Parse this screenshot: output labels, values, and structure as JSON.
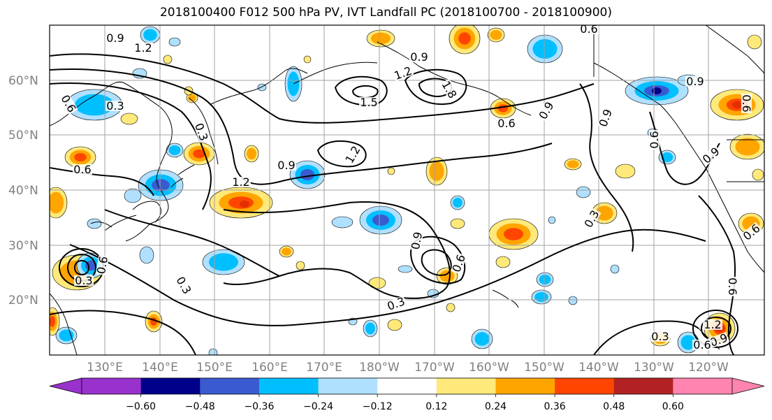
{
  "title": "2018100400 F012 500 hPa PV, IVT Landfall PC (2018100700 - 2018100900)",
  "colors": {
    "neg_060": "#9932cc",
    "neg_048": "#00008b",
    "neg_036": "#3a5bd0",
    "neg_024": "#00bfff",
    "neg_012": "#b0e0ff",
    "neutral": "#ffffff",
    "pos_012": "#ffe97a",
    "pos_024": "#ffa500",
    "pos_036": "#ff4500",
    "pos_048": "#b22222",
    "pos_060": "#ff85b0",
    "grid": "#a0a0a0",
    "coast": "#000000",
    "contour": "#000000"
  },
  "map": {
    "lat_labels": [
      "60°N",
      "50°N",
      "40°N",
      "30°N",
      "20°N"
    ],
    "lon_labels": [
      "130°E",
      "140°E",
      "150°E",
      "160°E",
      "170°E",
      "180°W",
      "170°W",
      "160°W",
      "150°W",
      "140°W",
      "130°W",
      "120°W"
    ],
    "contour_labels": [
      {
        "text": "0.9"
      },
      {
        "text": "1.2"
      },
      {
        "text": "0.6"
      },
      {
        "text": "0.3"
      },
      {
        "text": "0.6"
      },
      {
        "text": "0.3"
      },
      {
        "text": "1.2"
      },
      {
        "text": "0.9"
      },
      {
        "text": "1.5"
      },
      {
        "text": "1.2"
      },
      {
        "text": "0.9"
      },
      {
        "text": "1.8"
      },
      {
        "text": "0.6"
      },
      {
        "text": "0.9"
      },
      {
        "text": "0.6"
      },
      {
        "text": "0.9"
      },
      {
        "text": "0.6"
      },
      {
        "text": "0.9"
      },
      {
        "text": "0.6"
      },
      {
        "text": "0.9"
      },
      {
        "text": "1.2"
      },
      {
        "text": "0.9"
      },
      {
        "text": "0.6"
      },
      {
        "text": "0.3"
      },
      {
        "text": "0.3"
      },
      {
        "text": "0.3"
      },
      {
        "text": "0.3"
      },
      {
        "text": "0.6"
      },
      {
        "text": "0.9"
      },
      {
        "text": "1.2"
      },
      {
        "text": "0.6"
      },
      {
        "text": "0.3"
      },
      {
        "text": "0.6"
      },
      {
        "text": "0.6"
      }
    ]
  },
  "colorbar": {
    "labels": [
      "−0.60",
      "−0.48",
      "−0.36",
      "−0.24",
      "−0.12",
      "0.12",
      "0.24",
      "0.36",
      "0.48",
      "0.60"
    ]
  }
}
